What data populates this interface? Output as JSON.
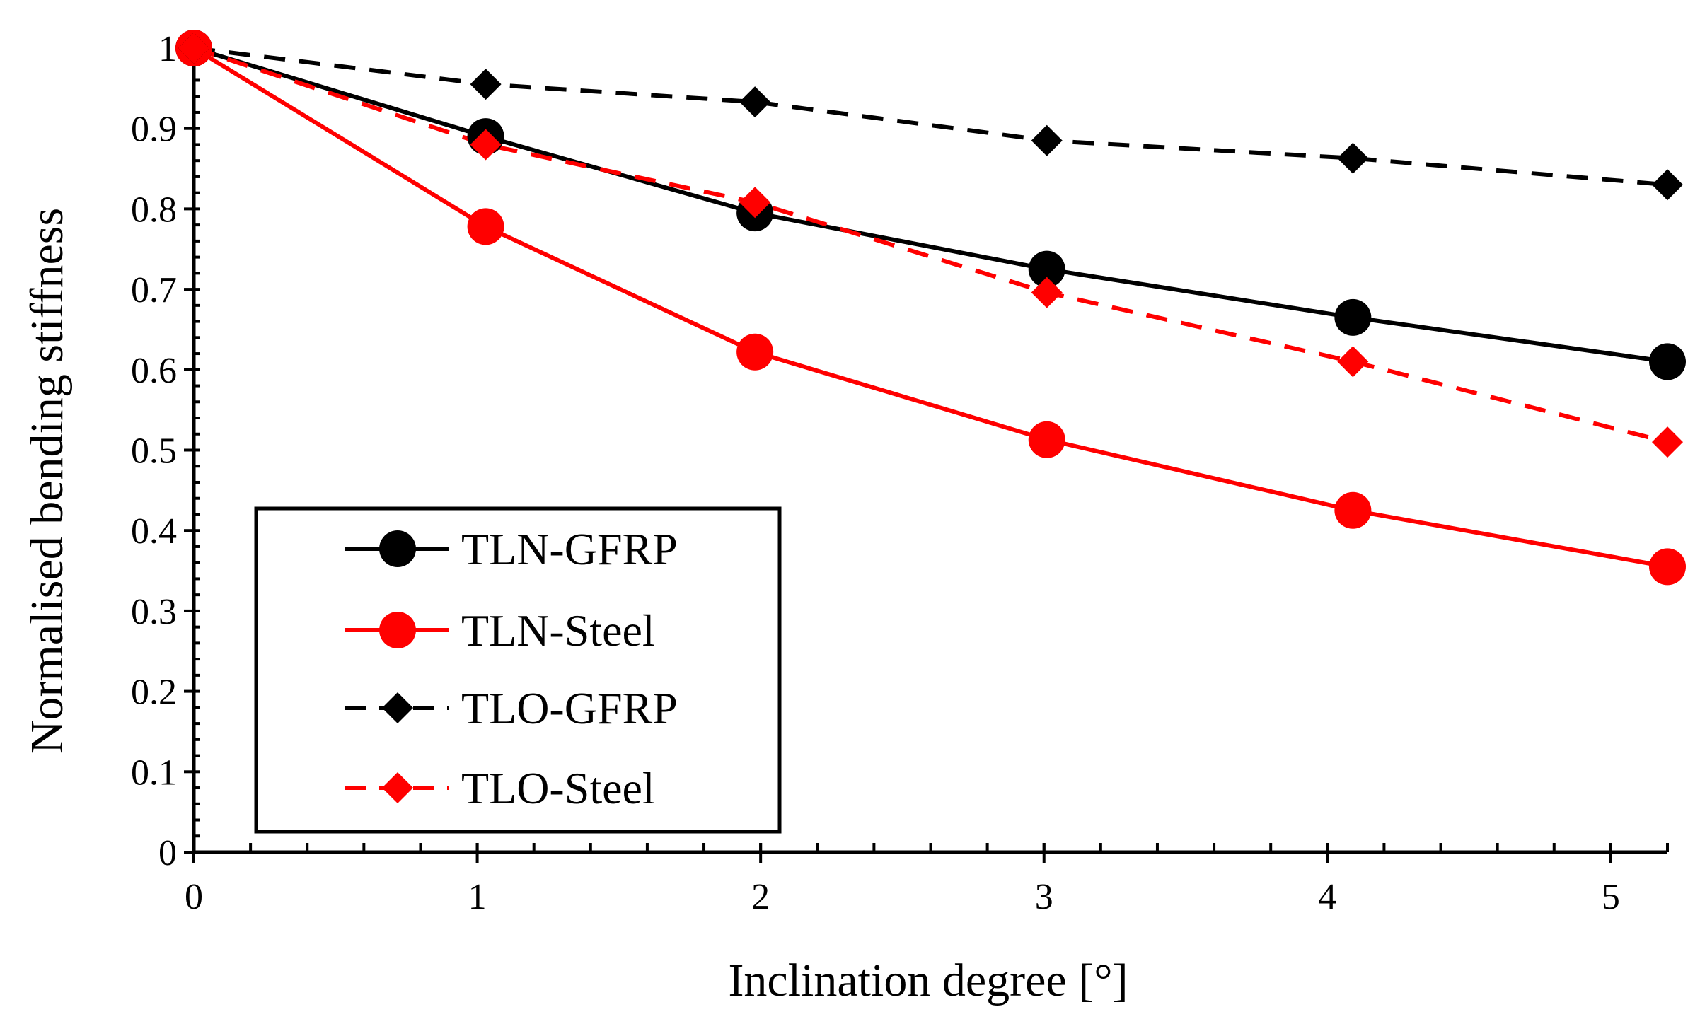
{
  "chart_data": {
    "type": "line",
    "title": "",
    "xlabel": "Inclination degree [°]",
    "ylabel": "Normalised bending stiffness",
    "xlim": [
      0,
      5.2
    ],
    "ylim": [
      0,
      1
    ],
    "x_ticks": [
      "0",
      "1",
      "2",
      "3",
      "4",
      "5"
    ],
    "y_ticks": [
      "0",
      "0.1",
      "0.2",
      "0.3",
      "0.4",
      "0.5",
      "0.6",
      "0.7",
      "0.8",
      "0.9",
      "1"
    ],
    "grid": false,
    "legend_position": "bottom-left",
    "series": [
      {
        "name": "TLN-GFRP",
        "color": "#000000",
        "line_style": "solid",
        "marker": "circle",
        "x": [
          0,
          1.03,
          1.98,
          3.01,
          4.09,
          5.2
        ],
        "y": [
          1.0,
          0.89,
          0.795,
          0.725,
          0.665,
          0.61
        ]
      },
      {
        "name": "TLN-Steel",
        "color": "#ff0000",
        "line_style": "solid",
        "marker": "circle",
        "x": [
          0,
          1.03,
          1.98,
          3.01,
          4.09,
          5.2
        ],
        "y": [
          1.0,
          0.778,
          0.622,
          0.513,
          0.425,
          0.355
        ]
      },
      {
        "name": "TLO-GFRP",
        "color": "#000000",
        "line_style": "dashed",
        "marker": "diamond",
        "x": [
          0,
          1.03,
          1.98,
          3.01,
          4.09,
          5.2
        ],
        "y": [
          1.0,
          0.955,
          0.933,
          0.885,
          0.863,
          0.83
        ]
      },
      {
        "name": "TLO-Steel",
        "color": "#ff0000",
        "line_style": "dashed",
        "marker": "diamond",
        "x": [
          0,
          1.03,
          1.98,
          3.01,
          4.09,
          5.2
        ],
        "y": [
          1.0,
          0.88,
          0.808,
          0.696,
          0.61,
          0.51
        ]
      }
    ]
  }
}
